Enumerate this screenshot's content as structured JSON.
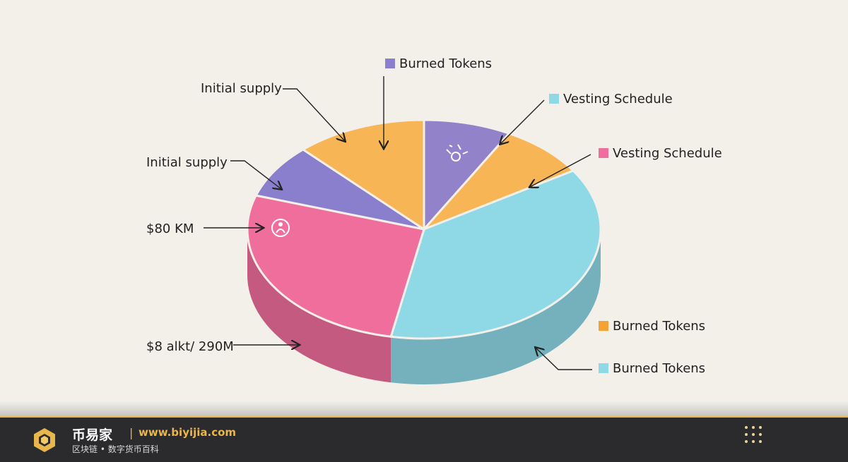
{
  "chart_data": {
    "type": "pie",
    "title": "",
    "slices": [
      {
        "label": "Burned Tokens",
        "value": 8,
        "color": "#9182c9"
      },
      {
        "label": "Vesting Schedule",
        "value": 8,
        "color": "#f8b556"
      },
      {
        "label": "Vesting Schedule",
        "value": 37,
        "color": "#8fd8e6"
      },
      {
        "label": "Burned Tokens",
        "value": 27,
        "color": "#f06e9c"
      },
      {
        "label": "$80 KM",
        "value": 8,
        "color": "#8a7fcc"
      },
      {
        "label": "Initial supply",
        "value": 12,
        "color": "#f8b556"
      }
    ],
    "legend": [
      {
        "label": "Burned Tokens",
        "color": "#8a7fcc"
      },
      {
        "label": "Vesting Schedule",
        "color": "#8fd8e6"
      },
      {
        "label": "Vesting Schedule",
        "color": "#f06e9c"
      },
      {
        "label": "Burned Tokens",
        "color": "#f4a236"
      },
      {
        "label": "Burned Tokens",
        "color": "#8fd8e6"
      }
    ],
    "callouts": [
      "Initial supply",
      "Initial supply",
      "$80 KM",
      "$8 alkt/ 290M"
    ]
  },
  "footer": {
    "brand": "币易家",
    "separator": "|",
    "url": "www.biyijia.com",
    "subtitle": "区块链 • 数字货币百科"
  },
  "colors": {
    "background": "#f3f0ea",
    "footer_bg": "#2b2b2e",
    "accent": "#e8b64a"
  }
}
